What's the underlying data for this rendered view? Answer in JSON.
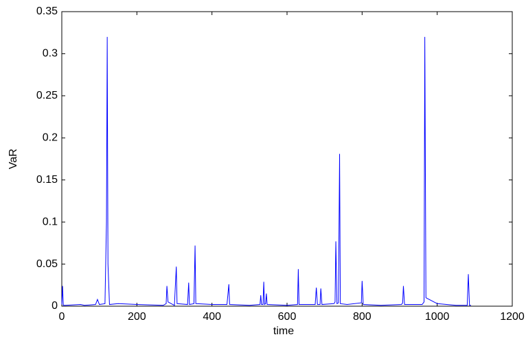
{
  "chart_data": {
    "type": "line",
    "x_label": "time",
    "y_label": "VaR",
    "x": [
      0,
      2,
      4,
      10,
      50,
      60,
      90,
      95,
      100,
      115,
      119,
      121,
      123,
      127,
      150,
      200,
      270,
      278,
      280,
      283,
      300,
      305,
      307,
      335,
      338,
      340,
      352,
      355,
      357,
      400,
      440,
      445,
      447,
      500,
      528,
      530,
      532,
      536,
      538,
      540,
      543,
      545,
      547,
      600,
      628,
      630,
      632,
      675,
      678,
      681,
      688,
      690,
      693,
      725,
      728,
      730,
      733,
      737,
      740,
      742,
      760,
      798,
      800,
      803,
      850,
      905,
      908,
      910,
      913,
      960,
      965,
      967,
      970,
      1000,
      1050,
      1080,
      1083,
      1086,
      1090
    ],
    "series": [
      {
        "color": "#0000ff",
        "values": [
          0.002,
          0.024,
          0.001,
          0.001,
          0.002,
          0.001,
          0.002,
          0.008,
          0.002,
          0.003,
          0.1,
          0.32,
          0.05,
          0.002,
          0.003,
          0.002,
          0.001,
          0.003,
          0.024,
          0.005,
          0.001,
          0.047,
          0.003,
          0.002,
          0.028,
          0.002,
          0.003,
          0.072,
          0.003,
          0.002,
          0.002,
          0.026,
          0.002,
          0.001,
          0.002,
          0.013,
          0.002,
          0.002,
          0.029,
          0.002,
          0.003,
          0.015,
          0.002,
          0.001,
          0.002,
          0.044,
          0.002,
          0.002,
          0.022,
          0.002,
          0.002,
          0.021,
          0.002,
          0.003,
          0.005,
          0.077,
          0.003,
          0.004,
          0.181,
          0.003,
          0.002,
          0.004,
          0.03,
          0.002,
          0.001,
          0.002,
          0.004,
          0.024,
          0.002,
          0.002,
          0.005,
          0.32,
          0.01,
          0.003,
          0.001,
          0.001,
          0.038,
          0.001,
          0.001
        ]
      }
    ],
    "xlim": [
      0,
      1200
    ],
    "xticks": [
      0,
      200,
      400,
      600,
      800,
      1000,
      1200
    ],
    "ylim": [
      0,
      0.35
    ],
    "yticks": [
      0,
      0.05,
      0.1,
      0.15,
      0.2,
      0.25,
      0.3,
      0.35
    ],
    "grid": false
  }
}
